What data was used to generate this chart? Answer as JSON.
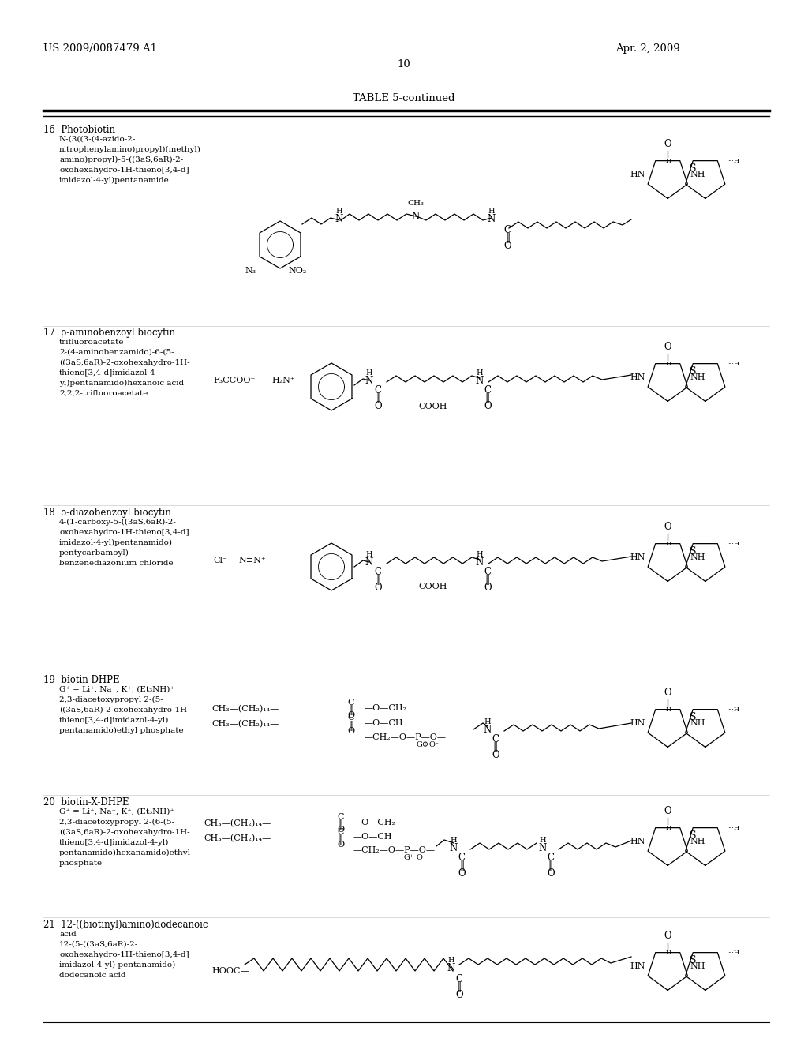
{
  "page_width": 10.24,
  "page_height": 13.2,
  "dpi": 100,
  "bg": "#ffffff",
  "header_left": "US 2009/0087479 A1",
  "header_right": "Apr. 2, 2009",
  "page_number": "10",
  "table_title": "TABLE 5-continued"
}
